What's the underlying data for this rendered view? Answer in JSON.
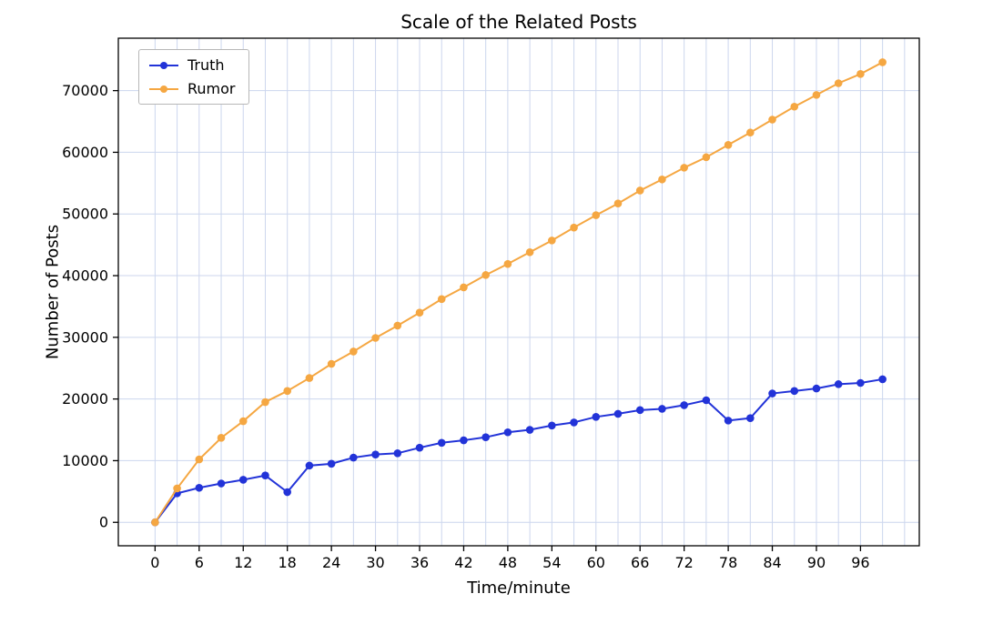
{
  "chart_data": {
    "type": "line",
    "title": "Scale of the Related Posts",
    "xlabel": "Time/minute",
    "ylabel": "Number of Posts",
    "x": [
      0,
      3,
      6,
      9,
      12,
      15,
      18,
      21,
      24,
      27,
      30,
      33,
      36,
      39,
      42,
      45,
      48,
      51,
      54,
      57,
      60,
      63,
      66,
      69,
      72,
      75,
      78,
      81,
      84,
      87,
      90,
      93,
      96,
      99
    ],
    "series": [
      {
        "name": "Truth",
        "color": "#2233d8",
        "values": [
          0,
          4700,
          5600,
          6300,
          6900,
          7600,
          4900,
          9200,
          9500,
          10500,
          11000,
          11200,
          12100,
          12900,
          13300,
          13800,
          14600,
          15000,
          15700,
          16200,
          17100,
          17600,
          18200,
          18400,
          19000,
          19800,
          16500,
          16900,
          20900,
          21300,
          21700,
          22400,
          22600,
          23200
        ]
      },
      {
        "name": "Rumor",
        "color": "#f5a742",
        "values": [
          0,
          5500,
          10200,
          13700,
          16400,
          19500,
          21300,
          23400,
          25700,
          27700,
          29900,
          31900,
          34000,
          36200,
          38100,
          40100,
          41900,
          43800,
          45700,
          47800,
          49800,
          51700,
          53800,
          55600,
          57500,
          59200,
          61200,
          63200,
          65300,
          67400,
          69300,
          71200,
          72700,
          74600
        ]
      }
    ],
    "xticks": [
      0,
      6,
      12,
      18,
      24,
      30,
      36,
      42,
      48,
      54,
      60,
      66,
      72,
      78,
      84,
      90,
      96
    ],
    "yticks": [
      0,
      10000,
      20000,
      30000,
      40000,
      50000,
      60000,
      70000
    ],
    "xlim": [
      -5,
      104
    ],
    "ylim": [
      -3800,
      78500
    ],
    "grid": true,
    "grid_color": "#ccd6ee",
    "xgrid_step": 3,
    "axis_color": "#000000",
    "legend_position": "upper left"
  }
}
